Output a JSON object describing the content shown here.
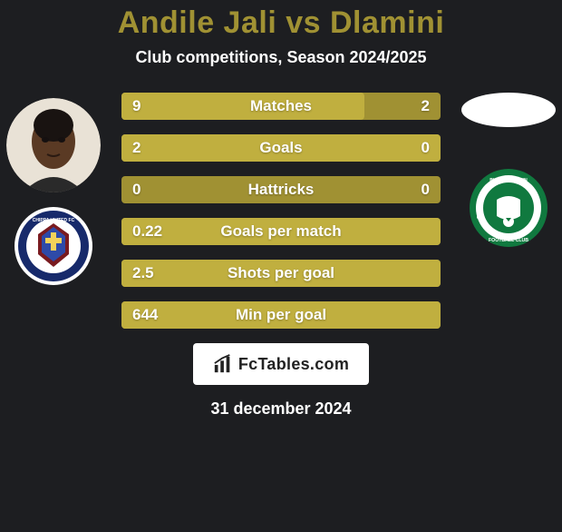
{
  "header": {
    "title": "Andile Jali vs Dlamini",
    "title_color": "#a09133",
    "title_fontsize": 34,
    "subtitle": "Club competitions, Season 2024/2025",
    "subtitle_color": "#ffffff",
    "subtitle_fontsize": 18
  },
  "background_color": "#1d1e21",
  "players": {
    "left": {
      "has_photo": true,
      "club_badge": "chippa"
    },
    "right": {
      "has_photo": false,
      "club_badge": "bloemfontein"
    }
  },
  "bars": {
    "track_color": "#a09133",
    "left_fill_color": "#c0af3f",
    "right_fill_color": "#c0af3f",
    "rows": [
      {
        "label": "Matches",
        "left_val": "9",
        "right_val": "2",
        "left_pct": 76,
        "right_pct": 0
      },
      {
        "label": "Goals",
        "left_val": "2",
        "right_val": "0",
        "left_pct": 100,
        "right_pct": 0
      },
      {
        "label": "Hattricks",
        "left_val": "0",
        "right_val": "0",
        "left_pct": 0,
        "right_pct": 0
      },
      {
        "label": "Goals per match",
        "left_val": "0.22",
        "right_val": "",
        "left_pct": 100,
        "right_pct": 0
      },
      {
        "label": "Shots per goal",
        "left_val": "2.5",
        "right_val": "",
        "left_pct": 100,
        "right_pct": 0
      },
      {
        "label": "Min per goal",
        "left_val": "644",
        "right_val": "",
        "left_pct": 100,
        "right_pct": 0
      }
    ]
  },
  "footer": {
    "site_label": "FcTables.com",
    "date": "31 december 2024"
  }
}
